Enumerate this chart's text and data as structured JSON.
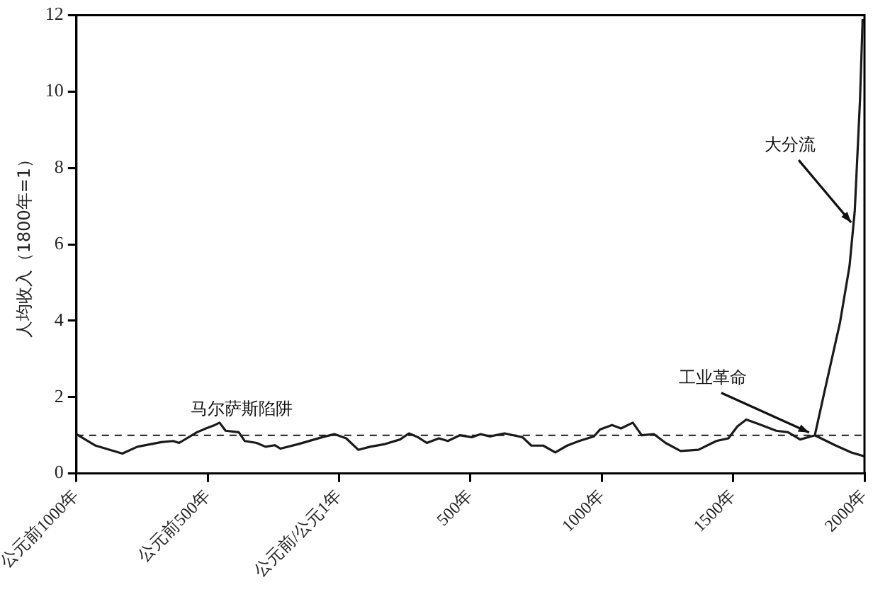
{
  "chart_data": {
    "type": "line",
    "ylabel": "人均收入（1800年=1）",
    "xlim": [
      -1000,
      2000
    ],
    "xticks": [
      {
        "value": -1000,
        "label": "公元前1000年"
      },
      {
        "value": -500,
        "label": "公元前500年"
      },
      {
        "value": 0,
        "label": "公元前/公元1年"
      },
      {
        "value": 500,
        "label": "500年"
      },
      {
        "value": 1000,
        "label": "1000年"
      },
      {
        "value": 1500,
        "label": "1500年"
      },
      {
        "value": 2000,
        "label": "2000年"
      }
    ],
    "ylim": [
      0,
      12
    ],
    "yticks": [
      0,
      2,
      4,
      6,
      8,
      10,
      12
    ],
    "grid": false,
    "legend": false,
    "marker": "none",
    "line_style": "solid",
    "series": [
      {
        "color": "#1a1a1a",
        "x": [
          -1000,
          -927,
          -825,
          -768,
          -677,
          -632,
          -609,
          -541,
          -507,
          -473,
          -455,
          -432,
          -382,
          -359,
          -314,
          -280,
          -245,
          -223,
          -155,
          -64,
          -18,
          27,
          73,
          118,
          175,
          232,
          266,
          300,
          334,
          380,
          414,
          459,
          505,
          539,
          573,
          630,
          664,
          698,
          732,
          777,
          823,
          868,
          914,
          970,
          993,
          1039,
          1073,
          1118,
          1152,
          1198,
          1243,
          1300,
          1368,
          1436,
          1482,
          1516,
          1550,
          1595,
          1664,
          1709,
          1755,
          1811,
          1845,
          1907,
          1943,
          1963,
          1983,
          1993
        ],
        "values": [
          1.03,
          0.73,
          0.52,
          0.7,
          0.82,
          0.85,
          0.8,
          1.08,
          1.18,
          1.27,
          1.33,
          1.12,
          1.08,
          0.85,
          0.8,
          0.7,
          0.74,
          0.65,
          0.77,
          0.95,
          1.03,
          0.92,
          0.62,
          0.7,
          0.77,
          0.89,
          1.05,
          0.95,
          0.8,
          0.92,
          0.85,
          1.0,
          0.95,
          1.03,
          0.97,
          1.05,
          1.0,
          0.95,
          0.73,
          0.73,
          0.55,
          0.73,
          0.85,
          0.97,
          1.15,
          1.27,
          1.18,
          1.33,
          1.0,
          1.03,
          0.8,
          0.59,
          0.62,
          0.85,
          0.92,
          1.23,
          1.41,
          1.3,
          1.12,
          1.08,
          0.89,
          1.0,
          2.06,
          3.96,
          5.43,
          6.88,
          9.79,
          11.9
        ]
      },
      {
        "color": "#1a1a1a",
        "x": [
          1811,
          1891,
          1950,
          2000
        ],
        "values": [
          1.0,
          0.73,
          0.55,
          0.45
        ]
      }
    ],
    "ref_lines": [
      {
        "axis": "y",
        "value": 1,
        "line_style": "dashed",
        "color": "#1a1a1a"
      }
    ],
    "annotations": [
      "马尔萨斯陷阱",
      {
        "text": "工业革命",
        "x": 1800,
        "y": 1
      },
      {
        "text": "大分流",
        "x": 1960,
        "y": 6.5
      }
    ]
  }
}
